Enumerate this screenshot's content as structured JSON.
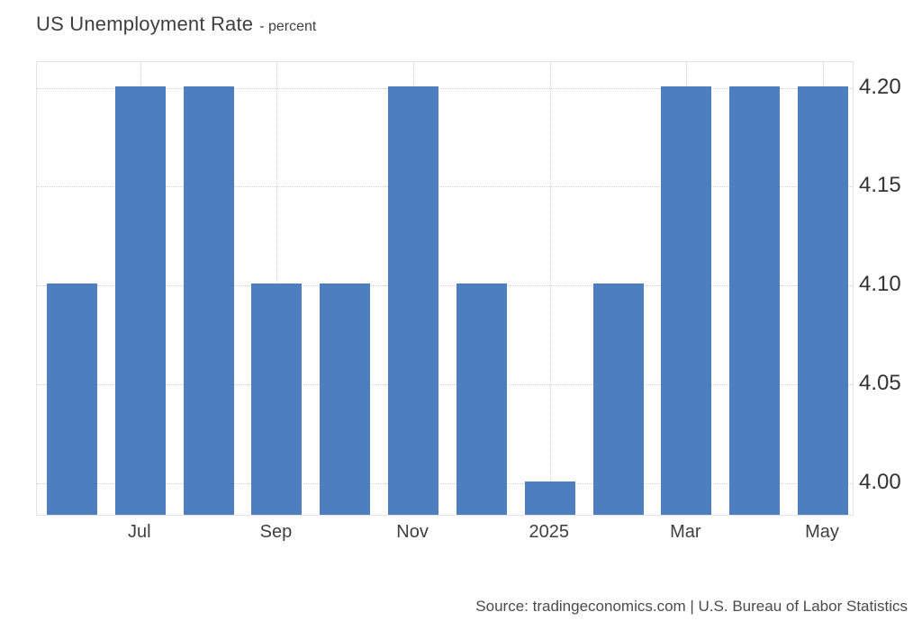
{
  "header": {
    "title": "US Unemployment Rate",
    "subtitle": "- percent"
  },
  "footer": {
    "source": "Source: tradingeconomics.com | U.S. Bureau of Labor Statistics"
  },
  "colors": {
    "bar": "#4d7ebe",
    "gridline": "#d2d2d2",
    "plot_border": "#e4e4e4",
    "axis_text": "#333333",
    "title_text": "#3f3f3f"
  },
  "chart_data": {
    "type": "bar",
    "title": "US Unemployment Rate",
    "unit_label": "percent",
    "values": [
      4.1,
      4.2,
      4.2,
      4.1,
      4.1,
      4.2,
      4.1,
      4.0,
      4.1,
      4.2,
      4.2,
      4.2
    ],
    "x_tick_labels": [
      {
        "bar_index": 1,
        "label": "Jul"
      },
      {
        "bar_index": 3,
        "label": "Sep"
      },
      {
        "bar_index": 5,
        "label": "Nov"
      },
      {
        "bar_index": 7,
        "label": "2025"
      },
      {
        "bar_index": 9,
        "label": "Mar"
      },
      {
        "bar_index": 11,
        "label": "May"
      }
    ],
    "y_ticks": [
      "4.00",
      "4.05",
      "4.10",
      "4.15",
      "4.20"
    ],
    "ylim": [
      3.983,
      4.213
    ],
    "grid": true,
    "legend": false,
    "ylabel": "",
    "xlabel": ""
  }
}
